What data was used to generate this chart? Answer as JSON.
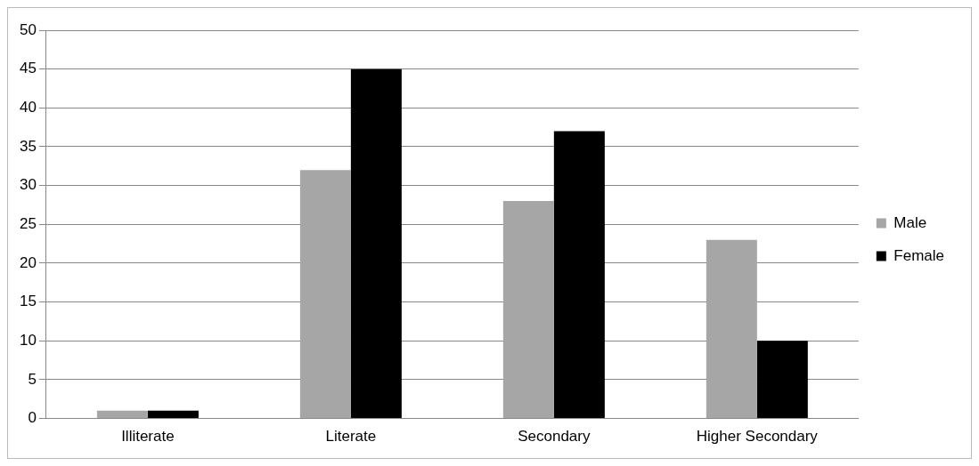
{
  "chart_data": {
    "type": "bar",
    "categories": [
      "Illiterate",
      "Literate",
      "Secondary",
      "Higher Secondary"
    ],
    "series": [
      {
        "name": "Male",
        "color": "#a6a6a6",
        "values": [
          1,
          32,
          28,
          23
        ]
      },
      {
        "name": "Female",
        "color": "#000000",
        "values": [
          1,
          45,
          37,
          10
        ]
      }
    ],
    "ylim": [
      0,
      50
    ],
    "yticks": [
      0,
      5,
      10,
      15,
      20,
      25,
      30,
      35,
      40,
      45,
      50
    ],
    "grid": "y",
    "legend": "right"
  }
}
